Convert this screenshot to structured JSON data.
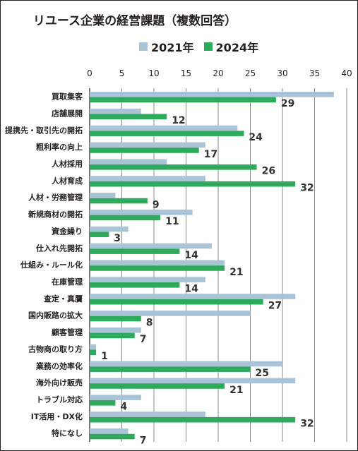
{
  "chart_data": {
    "type": "bar",
    "orientation": "horizontal",
    "title": "リユース企業の経営課題（複数回答）",
    "xlim": [
      0,
      40
    ],
    "x_ticks": [
      "0",
      "5",
      "10",
      "15",
      "20",
      "25",
      "30",
      "35",
      "40"
    ],
    "grid": true,
    "legend": "top",
    "categories": [
      "買取集客",
      "店舗展開",
      "提携先・取引先の開拓",
      "粗利率の向上",
      "人材採用",
      "人材育成",
      "人材・労務管理",
      "新規商材の開拓",
      "資金繰り",
      "仕入れ先開拓",
      "仕組み・ルール化",
      "在庫管理",
      "査定・真贋",
      "国内販路の拡大",
      "顧客管理",
      "古物商の取り方",
      "業務の効率化",
      "海外向け販売",
      "トラブル対応",
      "IT活用・DX化",
      "特になし"
    ],
    "series": [
      {
        "name": "2021年",
        "color": "#a9c4d6",
        "values": [
          38,
          8,
          23,
          18,
          12,
          18,
          4,
          16,
          6,
          19,
          21,
          18,
          32,
          25,
          8,
          1,
          30,
          32,
          8,
          18,
          6
        ]
      },
      {
        "name": "2024年",
        "color": "#2eaa5c",
        "values": [
          29,
          12,
          24,
          17,
          26,
          32,
          9,
          11,
          3,
          14,
          21,
          14,
          27,
          8,
          7,
          1,
          25,
          21,
          4,
          32,
          7
        ]
      }
    ]
  }
}
